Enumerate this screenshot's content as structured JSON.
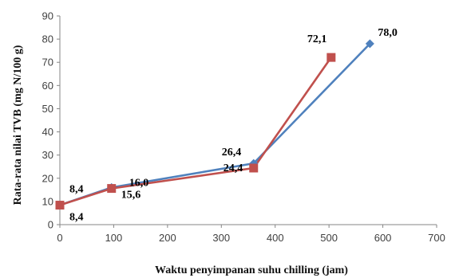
{
  "chart_data": {
    "type": "line",
    "title": "",
    "xlabel": "Waktu penyimpanan suhu chilling (jam)",
    "ylabel": "Rata-rata nilai TVB (mg N/100 g)",
    "xlim": [
      0,
      700
    ],
    "ylim": [
      0,
      90
    ],
    "x_ticks": [
      "0",
      "100",
      "200",
      "300",
      "400",
      "500",
      "600",
      "700"
    ],
    "y_ticks": [
      "0",
      "10",
      "20",
      "30",
      "40",
      "50",
      "60",
      "70",
      "80",
      "90"
    ],
    "grid": false,
    "legend": "none",
    "series": [
      {
        "marker": "diamond",
        "color": "#4F81BD",
        "x": [
          0,
          96,
          360,
          576
        ],
        "y": [
          8.4,
          16.0,
          26.4,
          78.0
        ],
        "labels": [
          "8,4",
          "16,0",
          "26,4",
          "78,0"
        ]
      },
      {
        "marker": "square",
        "color": "#C0504D",
        "x": [
          0,
          96,
          360,
          504
        ],
        "y": [
          8.4,
          15.6,
          24.4,
          72.1
        ],
        "labels": [
          "8,4",
          "15,6",
          "24,4",
          "72,1"
        ]
      }
    ]
  }
}
